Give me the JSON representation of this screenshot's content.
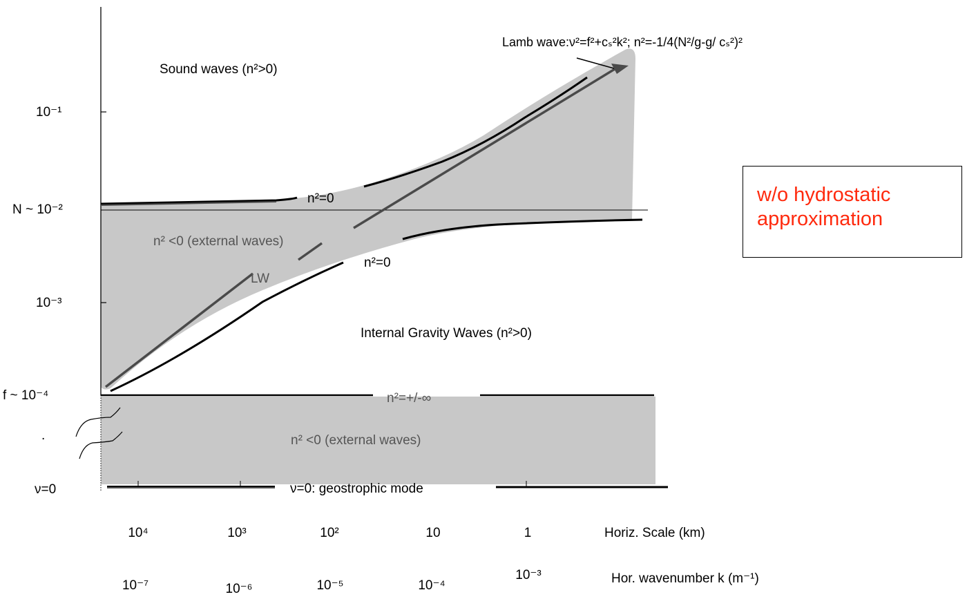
{
  "colors": {
    "shade": "#c8c8c8",
    "curve_dark": "#000000",
    "curve_grey": "#4a4a4a",
    "label_grey": "#555555",
    "note": "#ff2a0e"
  },
  "regions": {
    "sound": "Sound waves (n²>0)",
    "external_upper": "n² <0 (external waves)",
    "external_lower": "n² <0 (external  waves)",
    "internal": "Internal Gravity Waves (n²>0)"
  },
  "curves": {
    "n2_zero_upper": "n²=0",
    "n2_zero_lower": "n²=0",
    "lw": "LW",
    "n2_inf": "n²=+/-∞",
    "geostrophic": "ν=0: geostrophic mode"
  },
  "annotation": {
    "lamb_wave": "Lamb wave:ν²=f²+cₛ²k²; n²=-1/4(N²/g-g/ cₛ²)²"
  },
  "y_axis": {
    "ticks": [
      "10⁻¹",
      "N ~ 10⁻²",
      "10⁻³",
      "f ~ 10⁻⁴",
      ".",
      "ν=0"
    ]
  },
  "x_axis": {
    "scale_label": "Horiz. Scale (km)",
    "scale_ticks": [
      "10⁴",
      "10³",
      "10²",
      "10",
      "1"
    ],
    "wavenumber_label": "Hor. wavenumber k (m⁻¹)",
    "wavenumber_ticks": [
      "10⁻⁷",
      "10⁻⁶",
      "10⁻⁵",
      "10⁻⁴",
      "10⁻³"
    ]
  },
  "note": {
    "text": "w/o hydrostatic\napproximation"
  }
}
